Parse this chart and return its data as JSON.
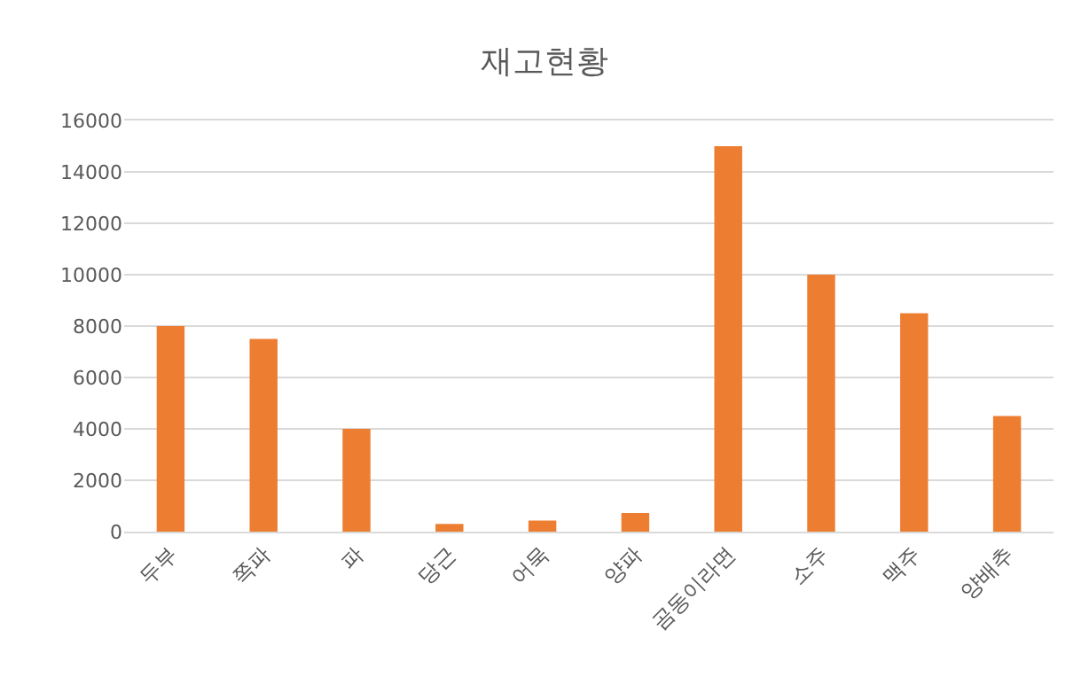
{
  "chart_data": {
    "type": "bar",
    "title": "재고현황",
    "categories": [
      "두부",
      "쪽파",
      "파",
      "당근",
      "어묵",
      "양파",
      "곰동이라면",
      "소주",
      "맥주",
      "양배추"
    ],
    "values": [
      8000,
      7500,
      4000,
      300,
      430,
      720,
      15000,
      10000,
      8500,
      4500
    ],
    "color": "#ed7d31",
    "ylim": [
      0,
      16000
    ],
    "yticks": [
      0,
      2000,
      4000,
      6000,
      8000,
      10000,
      12000,
      14000,
      16000
    ],
    "grid": "y"
  }
}
